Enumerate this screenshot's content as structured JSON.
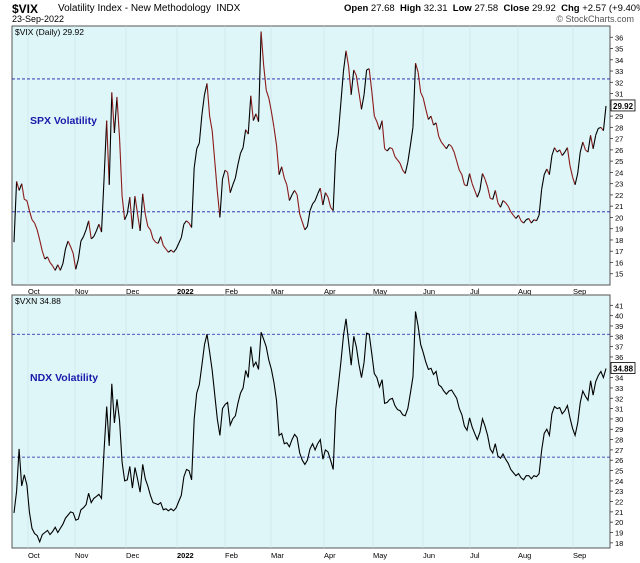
{
  "header": {
    "symbol": "$VIX",
    "description": "Volatility Index - New Methodology",
    "exchange": "INDX",
    "date": "23-Sep-2022",
    "open_label": "Open",
    "open": "27.68",
    "high_label": "High",
    "high": "32.31",
    "low_label": "Low",
    "low": "27.58",
    "close_label": "Close",
    "close": "29.92",
    "chg_label": "Chg",
    "chg": "+2.57 (+9.40%)",
    "credit": "© StockCharts.com"
  },
  "x_ticks": [
    "Oct",
    "Nov",
    "Dec",
    "2022",
    "Feb",
    "Mar",
    "Apr",
    "May",
    "Jun",
    "Jul",
    "Aug",
    "Sep"
  ],
  "colors": {
    "background": "#dff6f8",
    "up": "#000000",
    "down": "#8b1a1a",
    "hline": "#1a1aaa",
    "annotation": "#1a1aaa"
  },
  "chart_data": [
    {
      "type": "line",
      "series_label": "$VIX (Daily) 29.92",
      "annotation": "SPX Volatility",
      "last_value": "29.92",
      "ylim": [
        14,
        37
      ],
      "y_ticks": [
        15,
        16,
        17,
        18,
        19,
        20,
        21,
        22,
        23,
        24,
        25,
        26,
        27,
        28,
        29,
        30,
        31,
        32,
        33,
        34,
        35,
        36
      ],
      "hlines": [
        32.3,
        20.5
      ],
      "values": [
        17.8,
        23.2,
        22.4,
        23.0,
        21.6,
        21.5,
        20.6,
        19.8,
        19.5,
        18.9,
        18.0,
        17.0,
        16.3,
        16.5,
        16.0,
        15.7,
        15.3,
        15.8,
        15.3,
        15.9,
        17.2,
        17.9,
        17.4,
        16.8,
        15.4,
        16.3,
        17.9,
        18.3,
        18.9,
        19.7,
        18.1,
        18.3,
        18.8,
        19.4,
        18.7,
        23.5,
        28.6,
        22.9,
        31.1,
        27.5,
        30.7,
        27.1,
        21.9,
        19.8,
        20.3,
        21.8,
        19.0,
        21.9,
        20.3,
        18.8,
        22.1,
        20.3,
        19.2,
        18.9,
        18.1,
        17.8,
        17.7,
        18.3,
        17.5,
        17.2,
        16.9,
        17.1,
        16.9,
        17.2,
        17.7,
        18.2,
        19.4,
        19.7,
        19.5,
        19.1,
        24.4,
        26.1,
        26.6,
        29.1,
        30.9,
        31.9,
        29.0,
        27.7,
        25.0,
        22.3,
        20.0,
        23.4,
        24.2,
        24.0,
        22.2,
        22.9,
        23.5,
        24.7,
        25.7,
        26.2,
        27.8,
        27.4,
        30.8,
        28.6,
        29.2,
        28.5,
        36.5,
        33.5,
        31.3,
        30.6,
        29.4,
        28.0,
        26.4,
        23.8,
        24.5,
        23.5,
        22.9,
        21.5,
        22.0,
        22.4,
        22.0,
        20.3,
        19.6,
        18.9,
        19.2,
        20.6,
        21.2,
        21.5,
        22.1,
        22.6,
        21.1,
        22.2,
        21.8,
        20.9,
        20.6,
        25.8,
        27.4,
        30.2,
        33.0,
        34.8,
        33.4,
        30.9,
        33.1,
        32.6,
        31.1,
        29.6,
        30.9,
        33.1,
        33.2,
        31.2,
        29.0,
        28.5,
        27.8,
        28.6,
        26.1,
        25.9,
        26.2,
        26.1,
        25.4,
        25.1,
        24.8,
        24.2,
        23.9,
        24.9,
        26.4,
        28.0,
        33.7,
        32.9,
        31.1,
        30.6,
        29.6,
        28.7,
        29.0,
        28.2,
        28.4,
        27.2,
        26.7,
        26.4,
        26.1,
        26.5,
        26.3,
        25.8,
        25.0,
        24.2,
        23.8,
        22.9,
        22.8,
        23.9,
        23.0,
        22.4,
        21.8,
        22.4,
        23.9,
        23.4,
        22.7,
        21.7,
        21.6,
        22.4,
        21.3,
        20.9,
        21.5,
        21.3,
        21.0,
        20.5,
        20.2,
        19.9,
        20.2,
        19.7,
        19.5,
        19.8,
        19.9,
        19.5,
        19.8,
        19.7,
        20.2,
        22.5,
        23.8,
        24.3,
        23.8,
        25.5,
        26.2,
        25.8,
        26.0,
        25.5,
        25.8,
        26.2,
        24.6,
        23.6,
        22.9,
        23.9,
        25.8,
        26.7,
        26.0,
        25.8,
        27.3,
        26.1,
        27.3,
        27.9,
        28.0,
        27.7,
        29.9
      ]
    },
    {
      "type": "line",
      "series_label": "$VXN 34.88",
      "annotation": "NDX Volatility",
      "last_value": "34.88",
      "ylim": [
        17.5,
        42
      ],
      "y_ticks": [
        18,
        19,
        20,
        21,
        22,
        23,
        24,
        25,
        26,
        27,
        28,
        29,
        30,
        31,
        32,
        33,
        34,
        35,
        36,
        37,
        38,
        39,
        40,
        41
      ],
      "hlines": [
        38.2,
        26.3
      ],
      "values": [
        20.9,
        23.0,
        27.1,
        23.5,
        24.6,
        23.6,
        21.0,
        19.4,
        18.9,
        18.7,
        18.1,
        18.8,
        19.0,
        19.2,
        18.8,
        19.1,
        19.5,
        19.0,
        19.4,
        19.8,
        20.4,
        20.7,
        21.0,
        20.9,
        20.2,
        20.3,
        21.2,
        21.4,
        21.7,
        22.8,
        21.9,
        22.3,
        22.5,
        22.7,
        22.3,
        27.0,
        31.2,
        27.4,
        33.4,
        29.6,
        31.9,
        29.9,
        25.8,
        24.0,
        24.1,
        25.4,
        23.3,
        25.3,
        24.2,
        22.9,
        25.6,
        24.2,
        23.5,
        22.6,
        21.9,
        21.8,
        21.7,
        21.9,
        21.2,
        21.3,
        21.1,
        21.3,
        21.1,
        21.4,
        22.0,
        22.6,
        24.4,
        25.1,
        25.0,
        24.1,
        30.0,
        32.5,
        33.3,
        35.2,
        37.2,
        38.2,
        36.5,
        34.7,
        32.3,
        30.0,
        28.4,
        31.0,
        31.4,
        31.6,
        29.4,
        30.0,
        30.3,
        31.5,
        32.5,
        33.0,
        34.7,
        34.0,
        37.0,
        35.1,
        35.5,
        34.8,
        38.4,
        37.7,
        37.0,
        35.7,
        34.8,
        33.5,
        31.8,
        28.4,
        28.6,
        27.6,
        27.7,
        27.3,
        28.0,
        28.5,
        28.2,
        26.7,
        26.0,
        25.6,
        26.0,
        27.1,
        27.6,
        27.0,
        27.6,
        28.0,
        26.1,
        27.0,
        26.8,
        26.0,
        25.1,
        30.9,
        33.2,
        35.5,
        38.1,
        39.7,
        37.5,
        35.2,
        38.0,
        37.0,
        35.3,
        34.0,
        35.5,
        38.3,
        38.2,
        36.3,
        34.4,
        34.0,
        33.1,
        33.8,
        31.5,
        31.6,
        31.9,
        32.0,
        31.3,
        30.9,
        30.8,
        30.4,
        30.3,
        31.0,
        32.5,
        34.1,
        40.4,
        39.0,
        37.2,
        36.4,
        35.5,
        34.8,
        34.9,
        34.3,
        34.6,
        33.3,
        33.1,
        32.7,
        32.4,
        32.7,
        32.8,
        32.4,
        32.0,
        31.0,
        30.4,
        29.3,
        28.9,
        30.1,
        29.2,
        28.6,
        28.0,
        28.7,
        30.0,
        29.3,
        28.4,
        27.1,
        26.7,
        27.6,
        26.4,
        26.2,
        26.6,
        26.1,
        25.7,
        25.1,
        24.8,
        24.5,
        24.7,
        24.3,
        24.1,
        24.5,
        24.5,
        24.2,
        24.5,
        24.4,
        24.7,
        27.0,
        28.6,
        29.0,
        28.4,
        30.5,
        31.2,
        31.0,
        31.1,
        30.5,
        30.8,
        31.3,
        30.1,
        29.1,
        28.4,
        29.6,
        31.6,
        32.7,
        32.2,
        31.8,
        33.7,
        32.3,
        33.6,
        34.2,
        34.6,
        34.0,
        34.88
      ]
    }
  ]
}
